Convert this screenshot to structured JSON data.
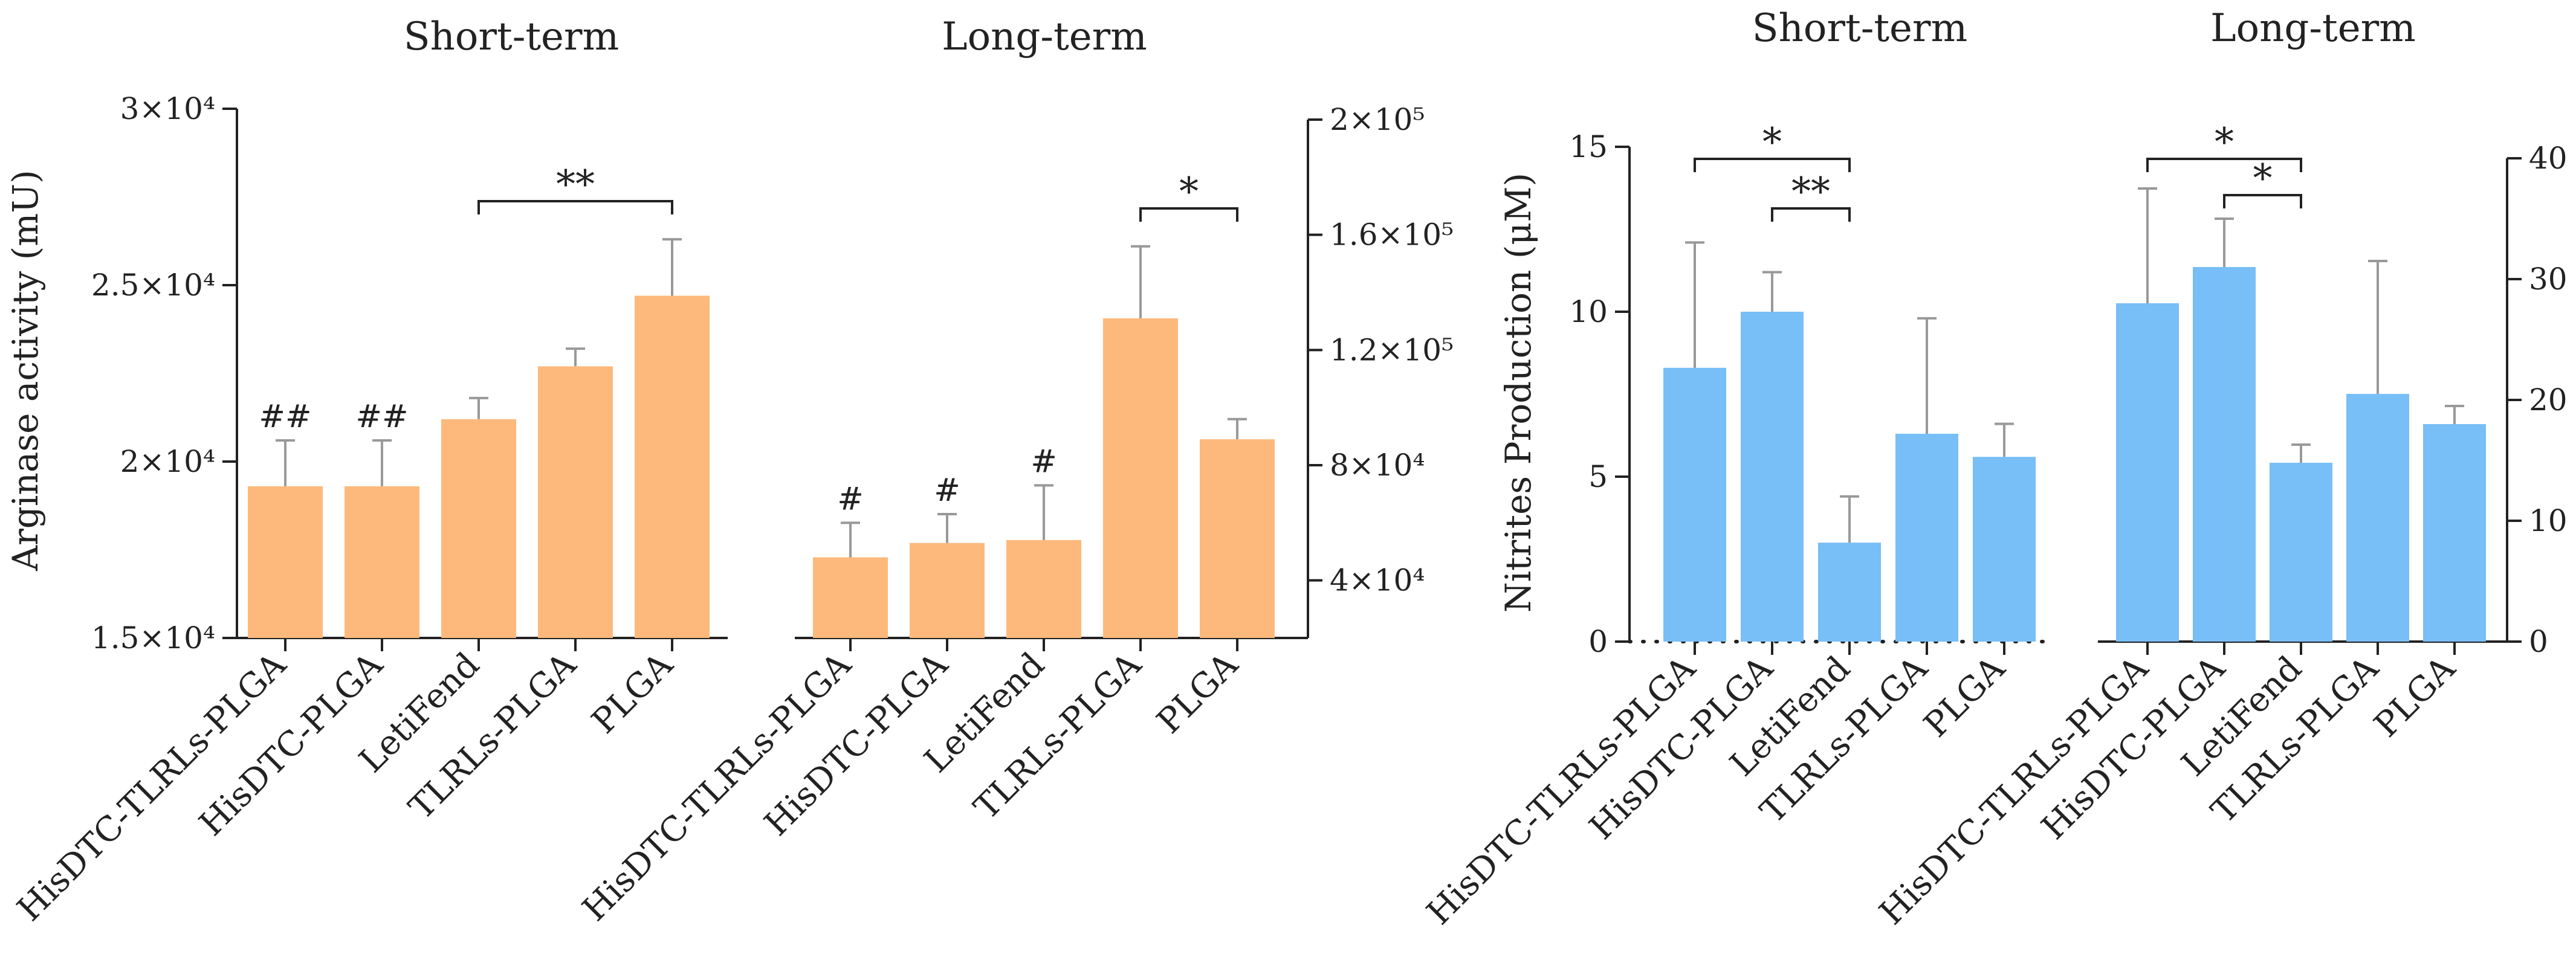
{
  "chart_data": [
    {
      "type": "bar",
      "title": "Short-term",
      "xlabel": "",
      "ylabel": "Arginase activity (mU)",
      "ylim": [
        15000,
        30000
      ],
      "axis": "left",
      "categories": [
        "HisDTC-TLRLs-PLGA",
        "HisDTC-PLGA",
        "LetiFend",
        "TLRLs-PLGA",
        "PLGA"
      ],
      "values": [
        19300,
        19300,
        21200,
        22700,
        24700
      ],
      "errors": [
        1300,
        1300,
        600,
        500,
        1600
      ],
      "marks": [
        "##",
        "##",
        "",
        "",
        ""
      ],
      "ticks": [
        {
          "v": 15000,
          "label": "1.5×10⁴"
        },
        {
          "v": 20000,
          "label": "2×10⁴"
        },
        {
          "v": 25000,
          "label": "2.5×10⁴"
        },
        {
          "v": 30000,
          "label": "3×10⁴"
        }
      ],
      "brackets": [
        {
          "from": 2,
          "to": 4,
          "label": "**"
        }
      ],
      "color": "#FDB97C"
    },
    {
      "type": "bar",
      "title": "Long-term",
      "xlabel": "",
      "ylabel": "",
      "ylim": [
        20000,
        200000
      ],
      "axis": "right",
      "categories": [
        "HisDTC-TLRLs-PLGA",
        "HisDTC-PLGA",
        "LetiFend",
        "TLRLs-PLGA",
        "PLGA"
      ],
      "values": [
        48000,
        53000,
        54000,
        131000,
        89000
      ],
      "errors": [
        12000,
        10000,
        19000,
        25000,
        7000
      ],
      "marks": [
        "#",
        "#",
        "#",
        "",
        ""
      ],
      "ticks": [
        {
          "v": 40000,
          "label": "4×10⁴"
        },
        {
          "v": 80000,
          "label": "8×10⁴"
        },
        {
          "v": 120000,
          "label": "1.2×10⁵"
        },
        {
          "v": 160000,
          "label": "1.6×10⁵"
        },
        {
          "v": 200000,
          "label": "2×10⁵"
        }
      ],
      "brackets": [
        {
          "from": 3,
          "to": 4,
          "label": "*"
        }
      ],
      "color": "#FDB97C"
    },
    {
      "type": "bar",
      "title": "Short-term",
      "xlabel": "",
      "ylabel": "Nitrites Production (μM)",
      "ylim": [
        0,
        15
      ],
      "axis": "left",
      "categories": [
        "HisDTC-TLRLs-PLGA",
        "HisDTC-PLGA",
        "LetiFend",
        "TLRLs-PLGA",
        "PLGA"
      ],
      "values": [
        8.3,
        10.0,
        3.0,
        6.3,
        5.6
      ],
      "errors": [
        3.8,
        1.2,
        1.4,
        3.5,
        1.0
      ],
      "marks": [
        "",
        "",
        "",
        "",
        ""
      ],
      "ticks": [
        {
          "v": 0,
          "label": "0"
        },
        {
          "v": 5,
          "label": "5"
        },
        {
          "v": 10,
          "label": "10"
        },
        {
          "v": 15,
          "label": "15"
        }
      ],
      "brackets": [
        {
          "from": 0,
          "to": 2,
          "label": "*",
          "level": 0
        },
        {
          "from": 1,
          "to": 2,
          "label": "**",
          "level": 1
        }
      ],
      "dotted_baseline": true,
      "color": "#78BEF7"
    },
    {
      "type": "bar",
      "title": "Long-term",
      "xlabel": "",
      "ylabel": "",
      "ylim": [
        0,
        40
      ],
      "axis": "right",
      "categories": [
        "HisDTC-TLRLs-PLGA",
        "HisDTC-PLGA",
        "LetiFend",
        "TLRLs-PLGA",
        "PLGA"
      ],
      "values": [
        28,
        31,
        14.8,
        20.5,
        18
      ],
      "errors": [
        9.5,
        4,
        1.5,
        11,
        1.5
      ],
      "marks": [
        "",
        "",
        "",
        "",
        ""
      ],
      "ticks": [
        {
          "v": 0,
          "label": "0"
        },
        {
          "v": 10,
          "label": "10"
        },
        {
          "v": 20,
          "label": "20"
        },
        {
          "v": 30,
          "label": "30"
        },
        {
          "v": 40,
          "label": "40"
        }
      ],
      "brackets": [
        {
          "from": 0,
          "to": 2,
          "label": "*",
          "level": 0
        },
        {
          "from": 1,
          "to": 2,
          "label": "*",
          "level": 1
        }
      ],
      "color": "#78BEF7"
    }
  ]
}
